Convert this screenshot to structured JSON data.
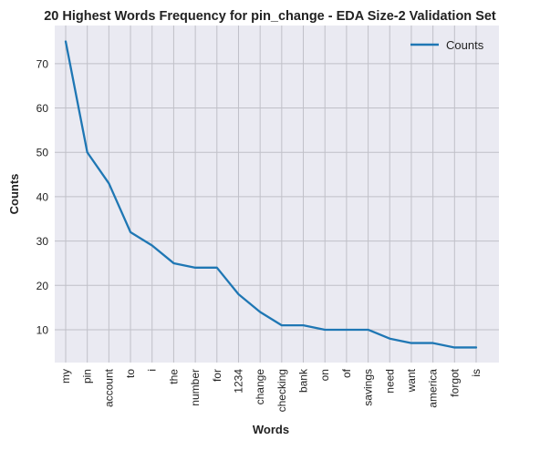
{
  "chart_data": {
    "type": "line",
    "title": "20 Highest Words Frequency for pin_change - EDA Size-2 Validation Set",
    "xlabel": "Words",
    "ylabel": "Counts",
    "categories": [
      "my",
      "pin",
      "account",
      "to",
      "i",
      "the",
      "number",
      "for",
      "1234",
      "change",
      "checking",
      "bank",
      "on",
      "of",
      "savings",
      "need",
      "want",
      "america",
      "forgot",
      "is"
    ],
    "series": [
      {
        "name": "Counts",
        "values": [
          75,
          50,
          43,
          32,
          29,
          25,
          24,
          24,
          18,
          14,
          11,
          11,
          10,
          10,
          10,
          8,
          7,
          7,
          6,
          6
        ],
        "color": "#1f77b4"
      }
    ],
    "ylim": [
      2.6,
      78.6
    ],
    "yticks": [
      10,
      20,
      30,
      40,
      50,
      60,
      70
    ],
    "grid": true,
    "legend_position": "top-right",
    "plot_background": "#eaeaf2",
    "grid_color": "#c0c0c8"
  }
}
